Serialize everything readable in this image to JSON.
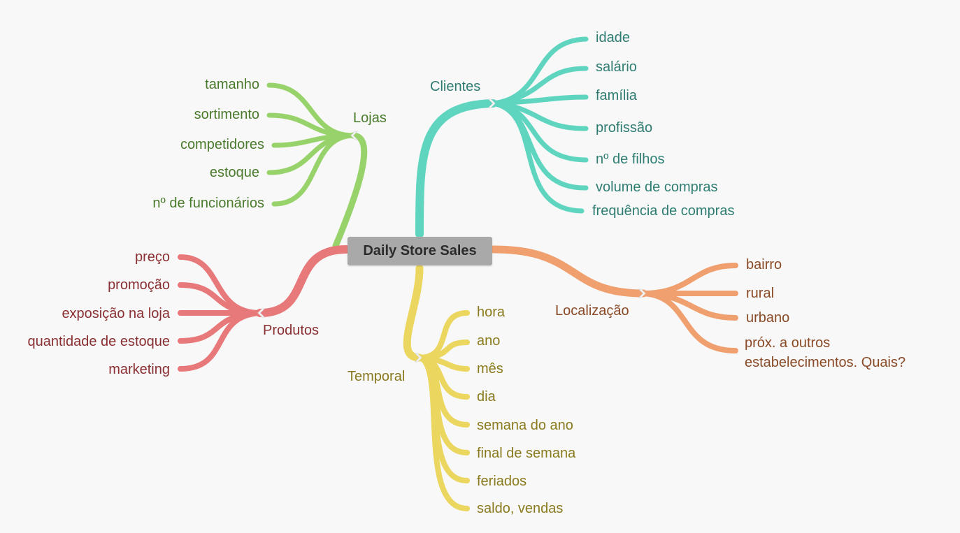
{
  "root": {
    "label": "Daily Store Sales"
  },
  "colors": {
    "clientes": "#5fd5c0",
    "lojas": "#97d36a",
    "produtos": "#e8797a",
    "localizacao": "#f0a06f",
    "temporal": "#ebd65f",
    "clientes_text": "#2f7d72",
    "lojas_text": "#4a7a2c",
    "produtos_text": "#8a2f32",
    "localizacao_text": "#8a4a26",
    "temporal_text": "#8a7a1e"
  },
  "branches": {
    "clientes": {
      "label": "Clientes",
      "items": [
        "idade",
        "salário",
        "família",
        "profissão",
        "nº de filhos",
        "volume de compras",
        "frequência de compras"
      ]
    },
    "lojas": {
      "label": "Lojas",
      "items": [
        "tamanho",
        "sortimento",
        "competidores",
        "estoque",
        "nº de funcionários"
      ]
    },
    "produtos": {
      "label": "Produtos",
      "items": [
        "preço",
        "promoção",
        "exposição na loja",
        "quantidade de estoque",
        "marketing"
      ]
    },
    "localizacao": {
      "label": "Localização",
      "items": [
        "bairro",
        "rural",
        "urbano",
        "próx. a outros\nestabelecimentos. Quais?"
      ]
    },
    "temporal": {
      "label": "Temporal",
      "items": [
        "hora",
        "ano",
        "mês",
        "dia",
        "semana do ano",
        "final de semana",
        "feriados",
        "saldo, vendas"
      ]
    }
  }
}
